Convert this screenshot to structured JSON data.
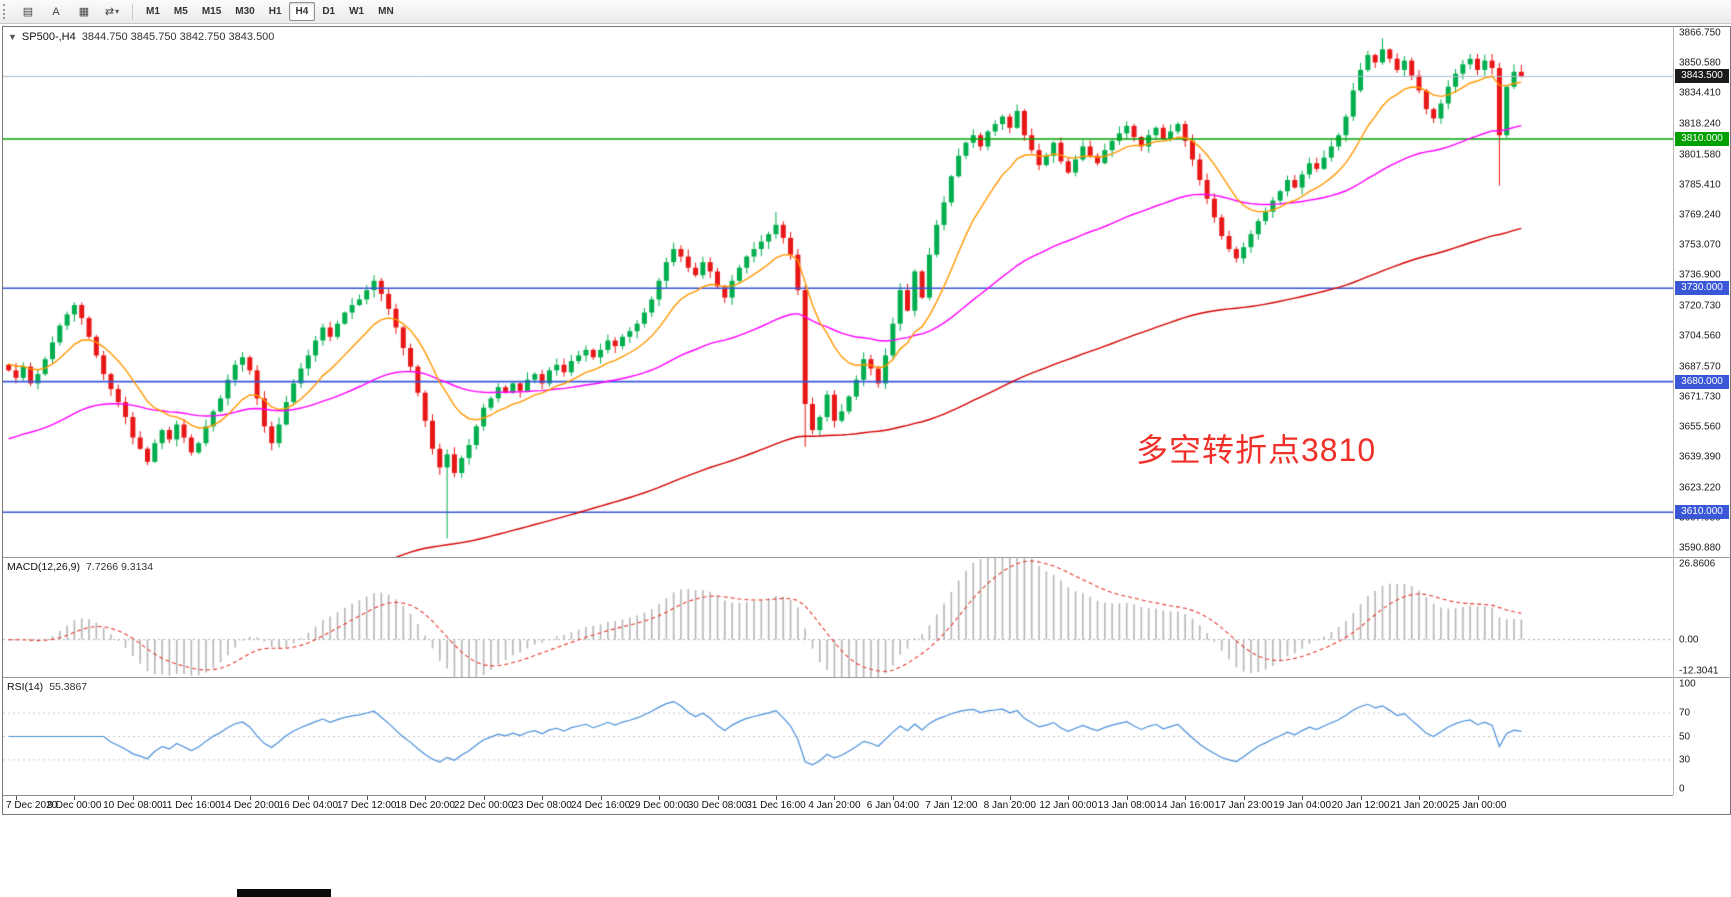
{
  "toolbar": {
    "icons": [
      {
        "name": "grid-icon",
        "glyph": "▤"
      },
      {
        "name": "cursor-tool-icon",
        "glyph": "A"
      },
      {
        "name": "template-icon",
        "glyph": "▦"
      },
      {
        "name": "autoscroll-icon",
        "glyph": "⇄"
      }
    ],
    "dropdown_caret": "▾",
    "timeframes": [
      {
        "label": "M1",
        "active": false
      },
      {
        "label": "M5",
        "active": false
      },
      {
        "label": "M15",
        "active": false
      },
      {
        "label": "M30",
        "active": false
      },
      {
        "label": "H1",
        "active": false
      },
      {
        "label": "H4",
        "active": true
      },
      {
        "label": "D1",
        "active": false
      },
      {
        "label": "W1",
        "active": false
      },
      {
        "label": "MN",
        "active": false
      }
    ]
  },
  "chart": {
    "collapse_arrow": "▼",
    "header_left": "SP500-,H4",
    "header_ohlc": "3844.750 3845.750 3842.750 3843.500",
    "price_axis": [
      "3866.750",
      "3850.580",
      "3834.410",
      "3818.240",
      "3801.580",
      "3785.410",
      "3769.240",
      "3753.070",
      "3736.900",
      "3720.730",
      "3704.560",
      "3687.570",
      "3671.730",
      "3655.560",
      "3639.390",
      "3623.220",
      "3607.050",
      "3590.880"
    ],
    "tags": [
      {
        "label": "3843.500",
        "value": 3843.5,
        "bg": "#1b1b1b"
      },
      {
        "label": "3810.000",
        "value": 3810,
        "bg": "#00a000"
      },
      {
        "label": "3730.000",
        "value": 3730,
        "bg": "#3a57d7"
      },
      {
        "label": "3680.000",
        "value": 3680,
        "bg": "#3a57d7"
      },
      {
        "label": "3610.000",
        "value": 3610,
        "bg": "#3a57d7"
      }
    ],
    "annotation": {
      "text": "多空转折点3810",
      "color": "#f03028"
    }
  },
  "chart_data": {
    "type": "candlestick",
    "title": "SP500-,H4",
    "ylim": [
      3586,
      3870
    ],
    "up_color": "#00ae4d",
    "down_color": "#e81717",
    "closes": [
      3686,
      3682,
      3688,
      3679,
      3684,
      3692,
      3701,
      3710,
      3716,
      3721,
      3714,
      3704,
      3694,
      3684,
      3676,
      3669,
      3661,
      3650,
      3644,
      3637,
      3647,
      3654,
      3649,
      3657,
      3650,
      3642,
      3647,
      3656,
      3664,
      3671,
      3681,
      3689,
      3693,
      3686,
      3671,
      3656,
      3647,
      3657,
      3669,
      3679,
      3687,
      3694,
      3702,
      3709,
      3704,
      3711,
      3717,
      3721,
      3724,
      3729,
      3734,
      3727,
      3719,
      3709,
      3698,
      3688,
      3674,
      3659,
      3644,
      3634,
      3641,
      3631,
      3639,
      3646,
      3656,
      3666,
      3671,
      3677,
      3674,
      3679,
      3675,
      3681,
      3684,
      3679,
      3686,
      3689,
      3685,
      3691,
      3694,
      3697,
      3693,
      3697,
      3702,
      3699,
      3704,
      3707,
      3711,
      3717,
      3724,
      3734,
      3744,
      3751,
      3747,
      3741,
      3737,
      3744,
      3739,
      3731,
      3725,
      3734,
      3741,
      3747,
      3751,
      3755,
      3759,
      3764,
      3757,
      3748,
      3729,
      3668,
      3654,
      3661,
      3673,
      3659,
      3664,
      3672,
      3681,
      3692,
      3687,
      3679,
      3694,
      3711,
      3729,
      3718,
      3739,
      3725,
      3748,
      3764,
      3776,
      3790,
      3801,
      3808,
      3812,
      3806,
      3814,
      3818,
      3822,
      3816,
      3825,
      3812,
      3804,
      3796,
      3801,
      3808,
      3798,
      3792,
      3799,
      3806,
      3801,
      3797,
      3804,
      3809,
      3813,
      3817,
      3811,
      3806,
      3812,
      3816,
      3810,
      3814,
      3818,
      3809,
      3799,
      3788,
      3778,
      3768,
      3758,
      3751,
      3746,
      3752,
      3759,
      3766,
      3771,
      3777,
      3782,
      3788,
      3784,
      3791,
      3797,
      3794,
      3800,
      3806,
      3812,
      3822,
      3836,
      3847,
      3855,
      3851,
      3858,
      3853,
      3847,
      3852,
      3844,
      3836,
      3826,
      3821,
      3829,
      3838,
      3845,
      3850,
      3853,
      3847,
      3852,
      3848,
      3812,
      3838,
      3846,
      3843.5
    ],
    "wick_lows": {
      "60": 3596,
      "109": 3645,
      "204": 3785
    },
    "wick_highs": {
      "105": 3771,
      "188": 3864
    },
    "bars_per_label": 8,
    "first_label_bar": 1,
    "x_labels": [
      "7 Dec 2020",
      "9 Dec 00:00",
      "10 Dec 08:00",
      "11 Dec 16:00",
      "14 Dec 20:00",
      "16 Dec 04:00",
      "17 Dec 12:00",
      "18 Dec 20:00",
      "22 Dec 00:00",
      "23 Dec 08:00",
      "24 Dec 16:00",
      "29 Dec 00:00",
      "30 Dec 08:00",
      "31 Dec 16:00",
      "4 Jan 20:00",
      "6 Jan 04:00",
      "7 Jan 12:00",
      "8 Jan 20:00",
      "12 Jan 00:00",
      "13 Jan 08:00",
      "14 Jan 16:00",
      "17 Jan 23:00",
      "19 Jan 04:00",
      "20 Jan 12:00",
      "21 Jan 20:00",
      "25 Jan 00:00"
    ],
    "hlines": [
      {
        "value": 3810,
        "color": "#00a000"
      },
      {
        "value": 3730,
        "color": "#3a57d7"
      },
      {
        "value": 3680,
        "color": "#3a57d7"
      },
      {
        "value": 3610,
        "color": "#3a57d7"
      }
    ],
    "price_line": {
      "value": 3843.5,
      "color": "#aabdd2"
    },
    "moving_averages": [
      {
        "name": "MA-slow",
        "period": 150,
        "seed": 3480,
        "color": "#d40000"
      },
      {
        "name": "MA-mid",
        "period": 55,
        "seed": 3648,
        "color": "#ff00ff"
      },
      {
        "name": "MA-fast",
        "period": 12,
        "seed": 3690,
        "color": "#ff9800"
      }
    ],
    "indicators": {
      "macd": {
        "label": "MACD(12,26,9)",
        "values": "7.7266 9.3134",
        "fast": 12,
        "slow": 26,
        "signal": 9,
        "range": [
          -12.3041,
          26.8606
        ],
        "axis": [
          "26.8606",
          "0.00",
          "-12.3041"
        ],
        "histogram_color": "#b6b6b6",
        "signal_color": "#e23b2e"
      },
      "rsi": {
        "label": "RSI(14)",
        "value": "55.3867",
        "period": 14,
        "range": [
          0,
          100
        ],
        "levels": [
          70,
          50,
          30
        ],
        "axis": [
          "100",
          "70",
          "50",
          "30",
          "0"
        ],
        "line_color": "#4a90d9",
        "level_color": "#c6c6c6"
      }
    }
  }
}
